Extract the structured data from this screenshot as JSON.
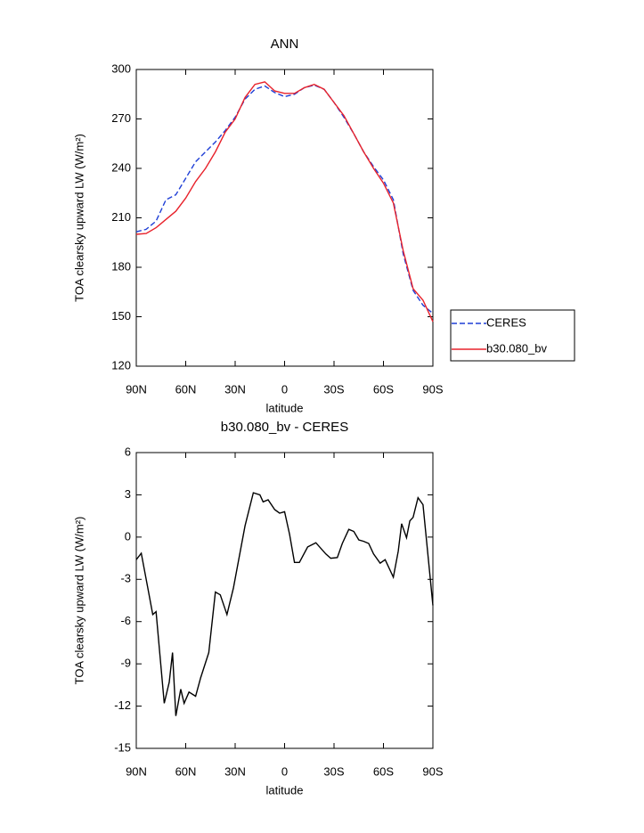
{
  "chart_data": [
    {
      "type": "line",
      "title": "ANN",
      "xlabel": "latitude",
      "ylabel": "TOA clearsky upward LW (W/m²)",
      "x": [
        90,
        84,
        78,
        72,
        66,
        60,
        54,
        48,
        42,
        36,
        30,
        24,
        18,
        12,
        6,
        0,
        -6,
        -12,
        -18,
        -24,
        -30,
        -36,
        -42,
        -48,
        -54,
        -60,
        -66,
        -72,
        -78,
        -84,
        -90
      ],
      "series": [
        {
          "name": "CERES",
          "color": "#1f3fd6",
          "linestyle": "dashed",
          "values": [
            201.5,
            203,
            208,
            221,
            224,
            234,
            244,
            250,
            256,
            263,
            271,
            282,
            288,
            290,
            286,
            283.5,
            285,
            289,
            290.5,
            288,
            280,
            271,
            261,
            250,
            241,
            233,
            221,
            188,
            166,
            157,
            152
          ]
        },
        {
          "name": "b30.080_bv",
          "color": "#e8222b",
          "linestyle": "solid",
          "values": [
            200,
            200.5,
            204,
            209,
            214,
            222,
            232,
            240,
            250,
            262,
            270,
            283,
            291,
            292.5,
            287,
            285.5,
            285.5,
            289,
            291,
            288,
            280,
            272,
            261,
            250,
            240,
            231,
            219,
            190,
            167,
            160,
            147
          ]
        }
      ],
      "xlim": [
        90,
        -90
      ],
      "xticks": [
        {
          "value": 90,
          "label": "90N"
        },
        {
          "value": 60,
          "label": "60N"
        },
        {
          "value": 30,
          "label": "30N"
        },
        0,
        {
          "value": -30,
          "label": "30S"
        },
        {
          "value": -60,
          "label": "60S"
        },
        {
          "value": -90,
          "label": "90S"
        }
      ],
      "ylim": [
        120,
        300
      ],
      "yticks": [
        120,
        150,
        180,
        210,
        240,
        270,
        300
      ],
      "legend": "right"
    },
    {
      "type": "line",
      "title": "b30.080_bv - CERES",
      "xlabel": "latitude",
      "ylabel": "TOA clearsky upward LW (W/m²)",
      "x": [
        90,
        87,
        83,
        80,
        78,
        73,
        70,
        68,
        66,
        63,
        61,
        58,
        54,
        51,
        46,
        42,
        39,
        35,
        31,
        28,
        24,
        19,
        15,
        13,
        10,
        6,
        3,
        0,
        -3,
        -6,
        -9,
        -14,
        -19,
        -25,
        -28,
        -32,
        -35,
        -39,
        -42,
        -45,
        -48,
        -51,
        -54,
        -58,
        -61,
        -66,
        -69,
        -71,
        -74,
        -76,
        -78,
        -81,
        -84,
        -90
      ],
      "series": [
        {
          "name": "b30.080_bv - CERES",
          "color": "#000000",
          "linestyle": "solid",
          "values": [
            -1.6,
            -1.15,
            -3.6,
            -5.5,
            -5.3,
            -11.8,
            -10.3,
            -8.2,
            -12.7,
            -10.8,
            -11.8,
            -11,
            -11.3,
            -10,
            -8.2,
            -3.9,
            -4.1,
            -5.5,
            -3.6,
            -1.7,
            0.8,
            3.15,
            3,
            2.5,
            2.65,
            1.95,
            1.7,
            1.8,
            0.2,
            -1.8,
            -1.8,
            -0.7,
            -0.4,
            -1.2,
            -1.5,
            -1.45,
            -0.45,
            0.55,
            0.4,
            -0.2,
            -0.3,
            -0.45,
            -1.2,
            -1.85,
            -1.6,
            -2.85,
            -1,
            0.95,
            -0.05,
            1.15,
            1.4,
            2.8,
            2.3,
            -4.85
          ]
        }
      ],
      "xlim": [
        90,
        -90
      ],
      "xticks": [
        {
          "value": 90,
          "label": "90N"
        },
        {
          "value": 60,
          "label": "60N"
        },
        {
          "value": 30,
          "label": "30N"
        },
        0,
        {
          "value": -30,
          "label": "30S"
        },
        {
          "value": -60,
          "label": "60S"
        },
        {
          "value": -90,
          "label": "90S"
        }
      ],
      "ylim": [
        -15,
        6
      ],
      "yticks": [
        -15,
        -12,
        -9,
        -6,
        -3,
        0,
        3,
        6
      ]
    }
  ]
}
